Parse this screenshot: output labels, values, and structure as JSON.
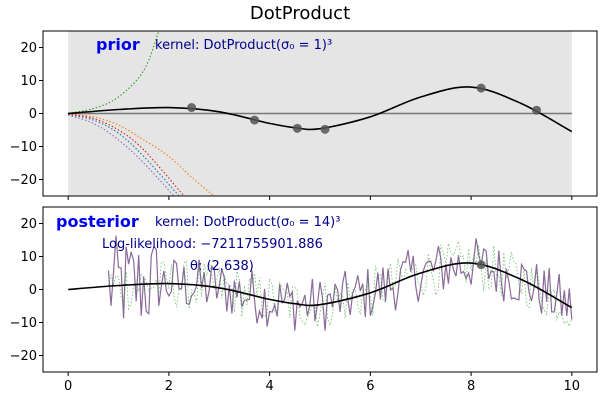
{
  "chart_data": {
    "title": "DotProduct",
    "type": "line",
    "x_ticks": [
      0,
      2,
      4,
      6,
      8,
      10
    ],
    "y_ticks": [
      -20,
      -10,
      0,
      10,
      20
    ],
    "xlim": [
      -0.5,
      10.5
    ],
    "ylim": [
      -25,
      25
    ],
    "grid": false,
    "colors": {
      "mean": "#000000",
      "observations": "#555555",
      "band": "#e5e5e5",
      "zero": "#777777",
      "label": "#0000ee",
      "annotation": "#00008b",
      "samples": [
        "#2ca02c",
        "#ff7f0e",
        "#1f77b4",
        "#9467bd",
        "#d62728"
      ]
    },
    "panels": [
      {
        "name": "prior",
        "label": "prior",
        "kernel_text": "kernel: DotProduct(σ₀ = 1)³",
        "mean": {
          "x": [
            0,
            1,
            2,
            3,
            4,
            4.5,
            5,
            6,
            7,
            8,
            9,
            10
          ],
          "y": [
            0,
            1.2,
            1.8,
            0.5,
            -3,
            -4.3,
            -4.6,
            -1,
            5,
            8,
            3,
            -5.5
          ]
        },
        "observations": {
          "x": [
            2.45,
            3.7,
            4.55,
            5.1,
            8.2,
            9.3
          ],
          "y": [
            1.8,
            -2.0,
            -4.5,
            -4.8,
            7.7,
            1.0
          ]
        },
        "band": {
          "x_from": 0,
          "x_to": 10,
          "y_from": -25,
          "y_to": 25
        },
        "samples": [
          {
            "color": "#2ca02c",
            "x": [
              0,
              0.5,
              1,
              1.5,
              1.8
            ],
            "y": [
              0.1,
              1.5,
              5,
              13,
              25
            ]
          },
          {
            "color": "#ff7f0e",
            "x": [
              0,
              0.5,
              1,
              1.5,
              2,
              2.5,
              2.9
            ],
            "y": [
              -0.1,
              -1,
              -3.5,
              -8,
              -13,
              -20,
              -25
            ]
          },
          {
            "color": "#1f77b4",
            "x": [
              0,
              0.5,
              1,
              1.5,
              2.2
            ],
            "y": [
              -0.3,
              -2,
              -6,
              -13,
              -25
            ]
          },
          {
            "color": "#9467bd",
            "x": [
              0,
              0.5,
              1,
              1.5,
              2.1
            ],
            "y": [
              -0.5,
              -3,
              -8,
              -15,
              -25
            ]
          },
          {
            "color": "#d62728",
            "x": [
              0,
              0.5,
              1,
              1.5,
              2.3
            ],
            "y": [
              -0.2,
              -1.5,
              -5,
              -11,
              -25
            ]
          }
        ]
      },
      {
        "name": "posterior",
        "label": "posterior",
        "kernel_text": "kernel: DotProduct(σ₀ = 14)³",
        "log_likelihood_text": "Log-likelihood: −7211755901.886",
        "theta_text": "θ: (2.638)",
        "mean": {
          "x": [
            0,
            1,
            2,
            3,
            4,
            4.5,
            5,
            6,
            7,
            8,
            9,
            10
          ],
          "y": [
            0,
            1.2,
            1.8,
            0.5,
            -3,
            -4.3,
            -4.6,
            -1,
            5,
            8,
            3,
            -5.5
          ]
        },
        "observations": {
          "x": [
            8.2
          ],
          "y": [
            7.5
          ]
        },
        "samples_color": "#8a6a98",
        "samples_step": 0.05,
        "samples_amplitude": 8.5,
        "samples_x_range": [
          0.8,
          10
        ]
      }
    ]
  }
}
